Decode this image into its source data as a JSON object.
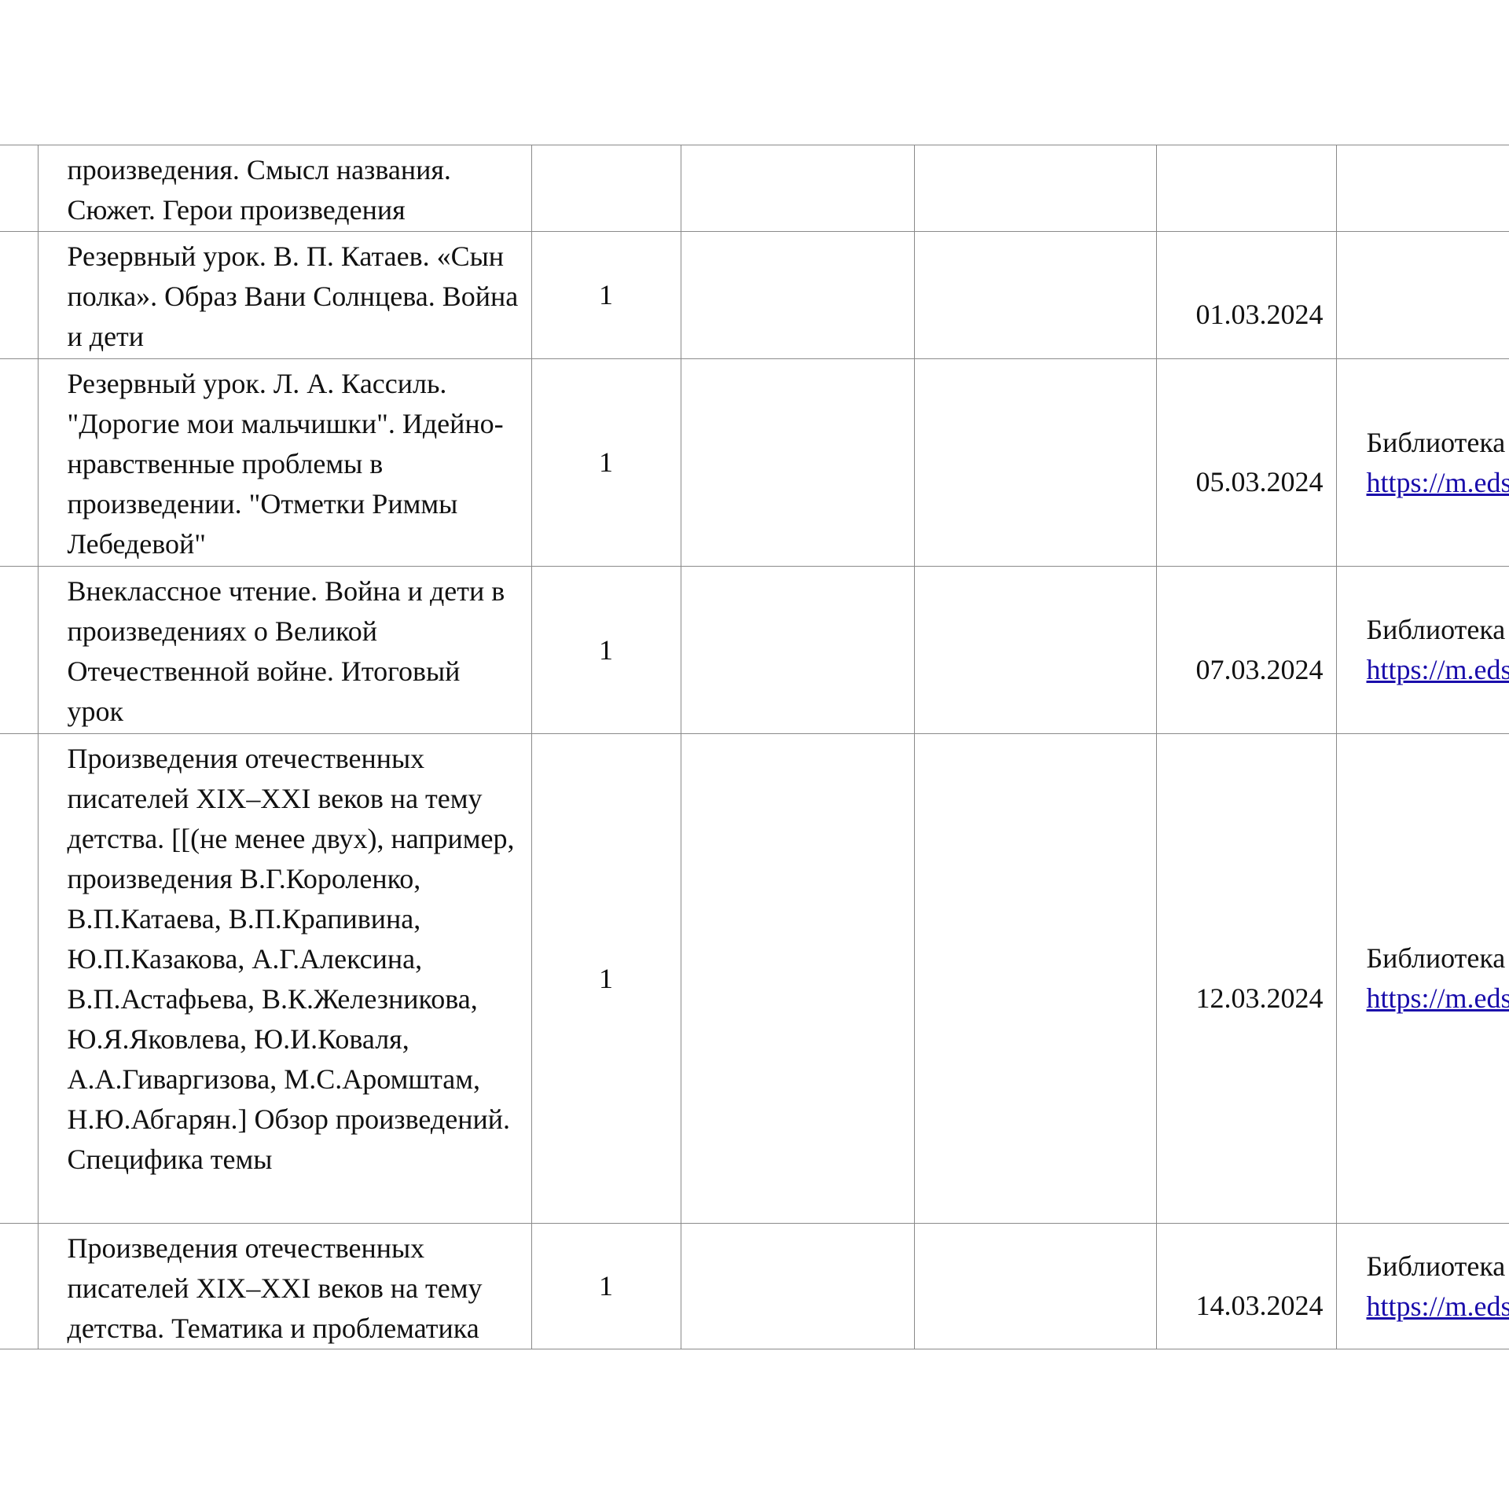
{
  "rows": [
    {
      "topic": "произведения. Смысл названия. Сюжет. Герои произведения",
      "count": "",
      "date": "",
      "resource": "",
      "link": ""
    },
    {
      "topic": "Резервный урок. В. П. Катаев. «Сын полка». Образ Вани Солнцева. Война и дети",
      "count": "1",
      "date": "01.03.2024",
      "resource": "",
      "link": ""
    },
    {
      "topic": "Резервный урок. Л. А. Кассиль. \"Дорогие мои мальчишки\". Идейно-нравственные проблемы в произведении. \"Отметки Риммы Лебедевой\"",
      "count": "1",
      "date": "05.03.2024",
      "resource": "Библиотека",
      "link": "https://m.eds"
    },
    {
      "topic": "Внеклассное чтение. Война и дети в произведениях о Великой Отечественной войне. Итоговый урок",
      "count": "1",
      "date": "07.03.2024",
      "resource": "Библиотека",
      "link": "https://m.eds"
    },
    {
      "topic": "Произведения отечественных писателей XIX–XXI веков на тему детства. [[(не менее двух), например, произведения В.Г.Короленко, В.П.Катаева, В.П.Крапивина, Ю.П.Казакова, А.Г.Алексина, В.П.Астафьева, В.К.Железникова, Ю.Я.Яковлева, Ю.И.Коваля, А.А.Гиваргизова, М.С.Аромштам, Н.Ю.Абгарян.] Обзор произведений. Специфика темы",
      "count": "1",
      "date": "12.03.2024",
      "resource": "Библиотека",
      "link": "https://m.eds"
    },
    {
      "topic": "Произведения отечественных писателей XIX–XXI веков на тему детства. Тематика и проблематика",
      "count": "1",
      "date": "14.03.2024",
      "resource": "Библиотека",
      "link": "https://m.eds"
    }
  ],
  "colors": {
    "link": "#1a0dab",
    "border": "#8a8a8a"
  }
}
